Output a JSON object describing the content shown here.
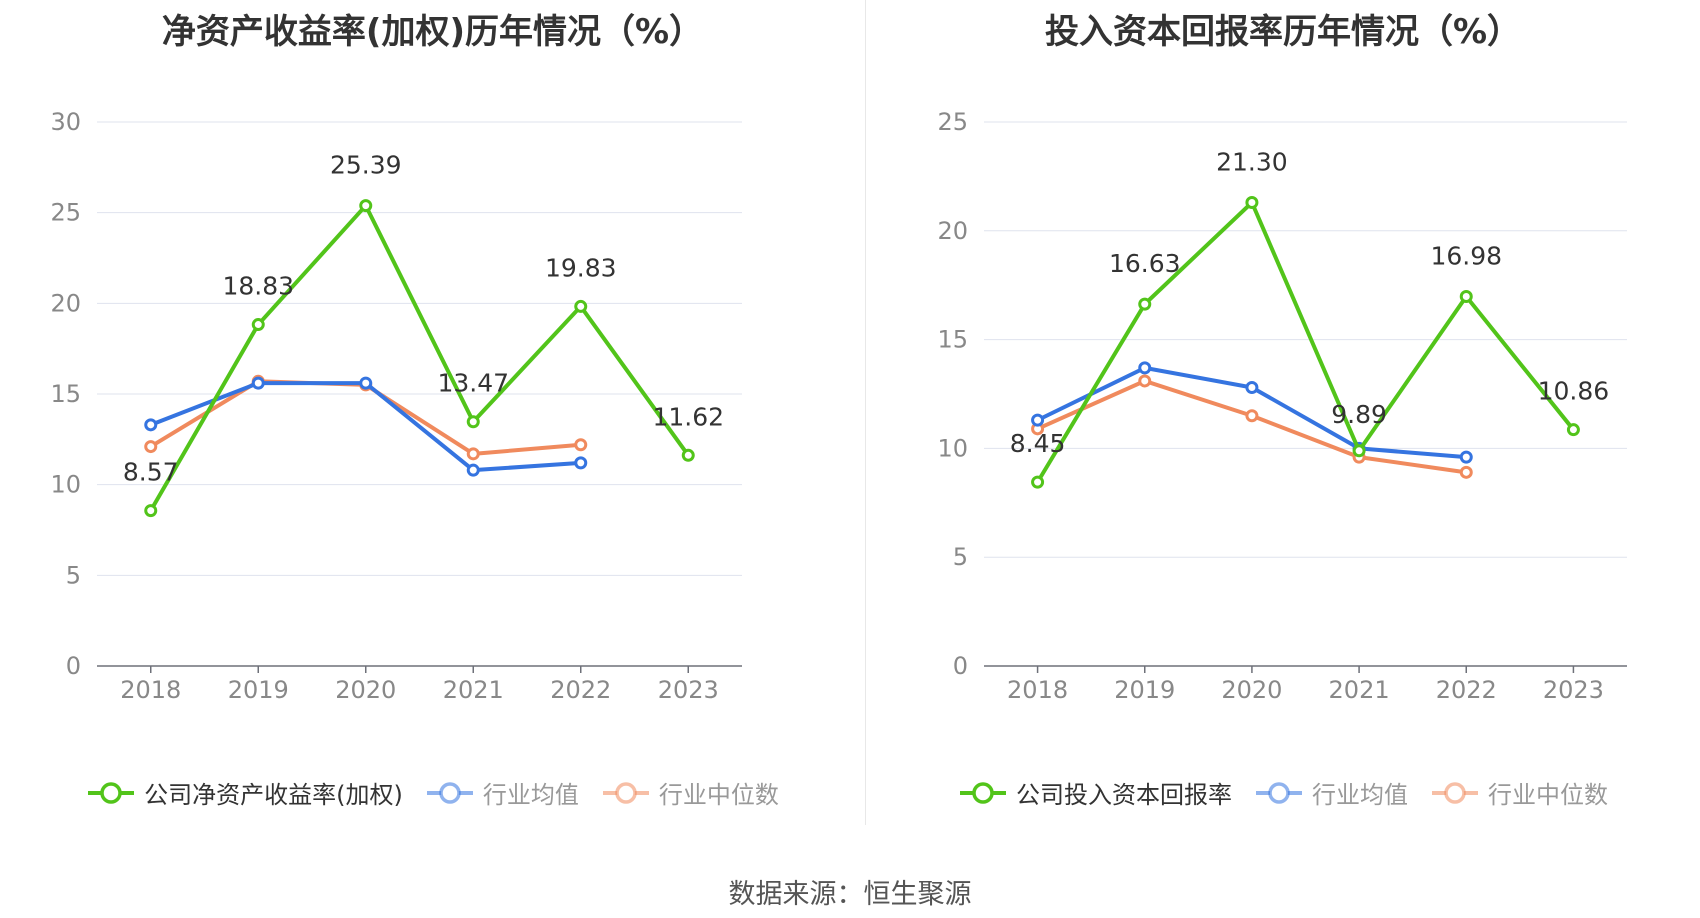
{
  "source_text": "数据来源：恒生聚源",
  "chart_data": [
    {
      "type": "line",
      "title": "净资产收益率(加权)历年情况（%）",
      "xlabel": "",
      "ylabel": "",
      "categories": [
        "2018",
        "2019",
        "2020",
        "2021",
        "2022",
        "2023"
      ],
      "ylim": [
        0,
        30
      ],
      "yticks": [
        0,
        5,
        10,
        15,
        20,
        25,
        30
      ],
      "grid": true,
      "legend_position": "bottom",
      "series": [
        {
          "name": "公司净资产收益率(加权)",
          "color": "#52c41a",
          "values": [
            8.57,
            18.83,
            25.39,
            13.47,
            19.83,
            11.62
          ],
          "labels": [
            "8.57",
            "18.83",
            "25.39",
            "13.47",
            "19.83",
            "11.62"
          ],
          "legend_active": true
        },
        {
          "name": "行业均值",
          "color": "#3574e0",
          "values": [
            13.3,
            15.6,
            15.6,
            10.8,
            11.2,
            null
          ],
          "legend_active": false
        },
        {
          "name": "行业中位数",
          "color": "#f08a5d",
          "values": [
            12.1,
            15.7,
            15.5,
            11.7,
            12.2,
            null
          ],
          "legend_active": false
        }
      ]
    },
    {
      "type": "line",
      "title": "投入资本回报率历年情况（%）",
      "xlabel": "",
      "ylabel": "",
      "categories": [
        "2018",
        "2019",
        "2020",
        "2021",
        "2022",
        "2023"
      ],
      "ylim": [
        0,
        25
      ],
      "yticks": [
        0,
        5,
        10,
        15,
        20,
        25
      ],
      "grid": true,
      "legend_position": "bottom",
      "series": [
        {
          "name": "公司投入资本回报率",
          "color": "#52c41a",
          "values": [
            8.45,
            16.63,
            21.3,
            9.89,
            16.98,
            10.86
          ],
          "labels": [
            "8.45",
            "16.63",
            "21.30",
            "9.89",
            "16.98",
            "10.86"
          ],
          "legend_active": true
        },
        {
          "name": "行业均值",
          "color": "#3574e0",
          "values": [
            11.3,
            13.7,
            12.8,
            10.0,
            9.6,
            null
          ],
          "legend_active": false
        },
        {
          "name": "行业中位数",
          "color": "#f08a5d",
          "values": [
            10.9,
            13.1,
            11.5,
            9.6,
            8.9,
            null
          ],
          "legend_active": false
        }
      ]
    }
  ]
}
